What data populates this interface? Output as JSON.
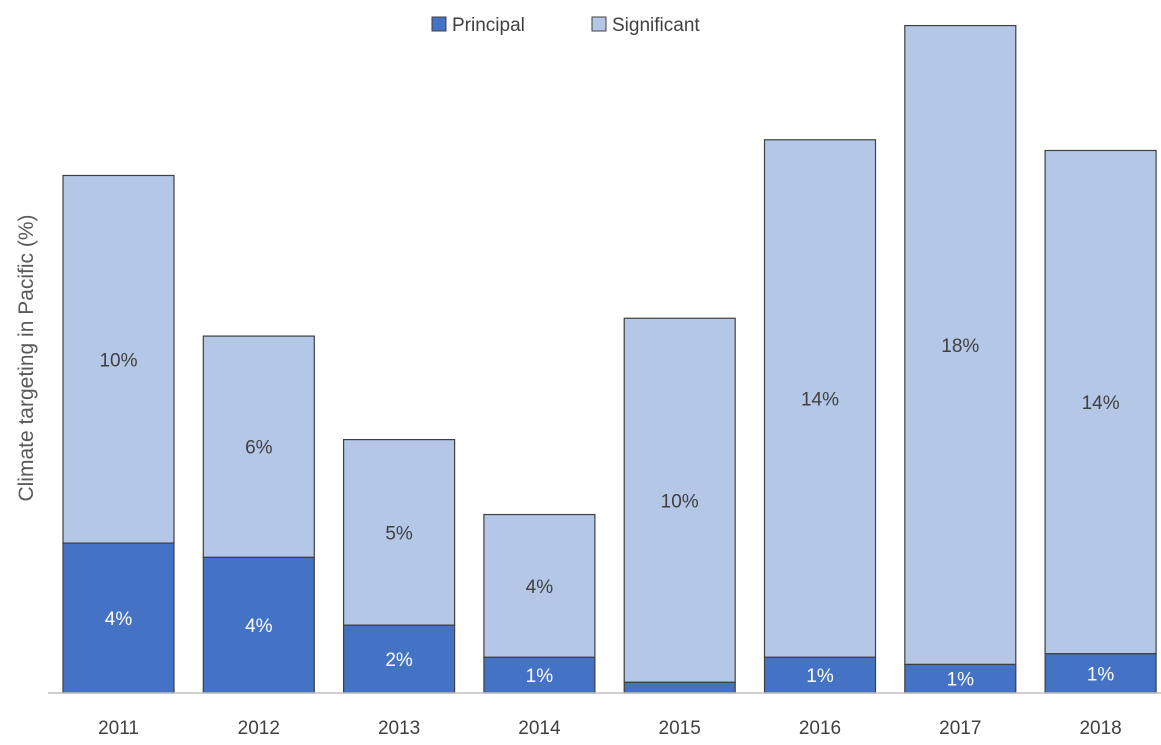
{
  "chart_data": {
    "type": "bar",
    "stacked": true,
    "title": "",
    "xlabel": "",
    "ylabel": "Climate targeting in Pacific (%)",
    "ylim": [
      0,
      18.8
    ],
    "grid": false,
    "legend_position": "top-center",
    "categories": [
      "2011",
      "2012",
      "2013",
      "2014",
      "2015",
      "2016",
      "2017",
      "2018"
    ],
    "series": [
      {
        "name": "Principal",
        "color": "#4472C4",
        "values": [
          4.2,
          3.8,
          1.9,
          1.0,
          0.3,
          1.0,
          0.8,
          1.1
        ],
        "labels": [
          "4%",
          "4%",
          "2%",
          "1%",
          "",
          "1%",
          "1%",
          "1%"
        ]
      },
      {
        "name": "Significant",
        "color": "#B4C7E7",
        "values": [
          10.3,
          6.2,
          5.2,
          4.0,
          10.2,
          14.5,
          17.9,
          14.1
        ],
        "labels": [
          "10%",
          "6%",
          "5%",
          "4%",
          "10%",
          "14%",
          "18%",
          "14%"
        ]
      }
    ]
  }
}
